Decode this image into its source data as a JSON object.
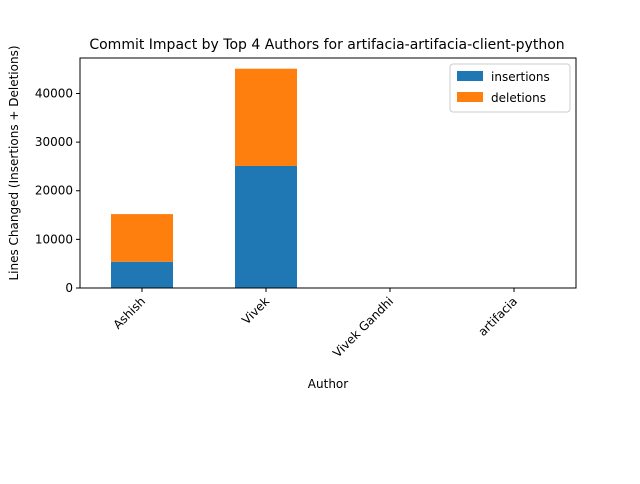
{
  "chart_data": {
    "type": "bar",
    "stacked": true,
    "title": "Commit Impact by Top 4 Authors for artifacia-artifacia-client-python",
    "xlabel": "Author",
    "ylabel": "Lines Changed (Insertions + Deletions)",
    "categories": [
      "Ashish",
      "Vivek",
      "Vivek Gandhi",
      "artifacia"
    ],
    "series": [
      {
        "name": "insertions",
        "color": "#1f77b4",
        "values": [
          5400,
          25100,
          0,
          0
        ]
      },
      {
        "name": "deletions",
        "color": "#ff7f0e",
        "values": [
          9800,
          20000,
          0,
          0
        ]
      }
    ],
    "ylim": [
      0,
      47300
    ],
    "yticks": [
      0,
      10000,
      20000,
      30000,
      40000
    ],
    "ytick_labels": [
      "0",
      "10000",
      "20000",
      "30000",
      "40000"
    ],
    "legend_position": "top-right",
    "grid": false
  }
}
